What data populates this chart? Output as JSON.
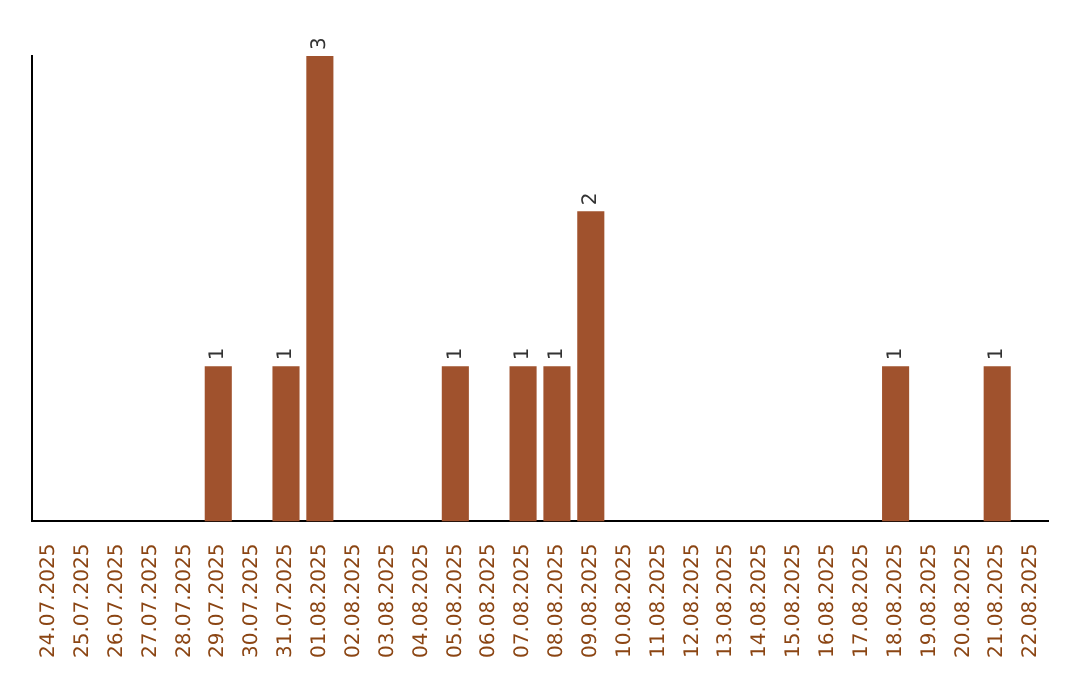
{
  "chart_data": {
    "type": "bar",
    "categories": [
      "24.07.2025",
      "25.07.2025",
      "26.07.2025",
      "27.07.2025",
      "28.07.2025",
      "29.07.2025",
      "30.07.2025",
      "31.07.2025",
      "01.08.2025",
      "02.08.2025",
      "03.08.2025",
      "04.08.2025",
      "05.08.2025",
      "06.08.2025",
      "07.08.2025",
      "08.08.2025",
      "09.08.2025",
      "10.08.2025",
      "11.08.2025",
      "12.08.2025",
      "13.08.2025",
      "14.08.2025",
      "15.08.2025",
      "16.08.2025",
      "17.08.2025",
      "18.08.2025",
      "19.08.2025",
      "20.08.2025",
      "21.08.2025",
      "22.08.2025"
    ],
    "values": [
      0,
      0,
      0,
      0,
      0,
      1,
      0,
      1,
      3,
      0,
      0,
      0,
      1,
      0,
      1,
      1,
      2,
      0,
      0,
      0,
      0,
      0,
      0,
      0,
      0,
      1,
      0,
      0,
      1,
      0
    ],
    "value_labels": [
      null,
      null,
      null,
      null,
      null,
      "1",
      null,
      "1",
      "3",
      null,
      null,
      null,
      "1",
      null,
      "1",
      "1",
      "2",
      null,
      null,
      null,
      null,
      null,
      null,
      null,
      null,
      "1",
      null,
      null,
      "1",
      null
    ],
    "color": "#a0522d",
    "grid": false,
    "legend": false,
    "tick_labels": "x"
  }
}
